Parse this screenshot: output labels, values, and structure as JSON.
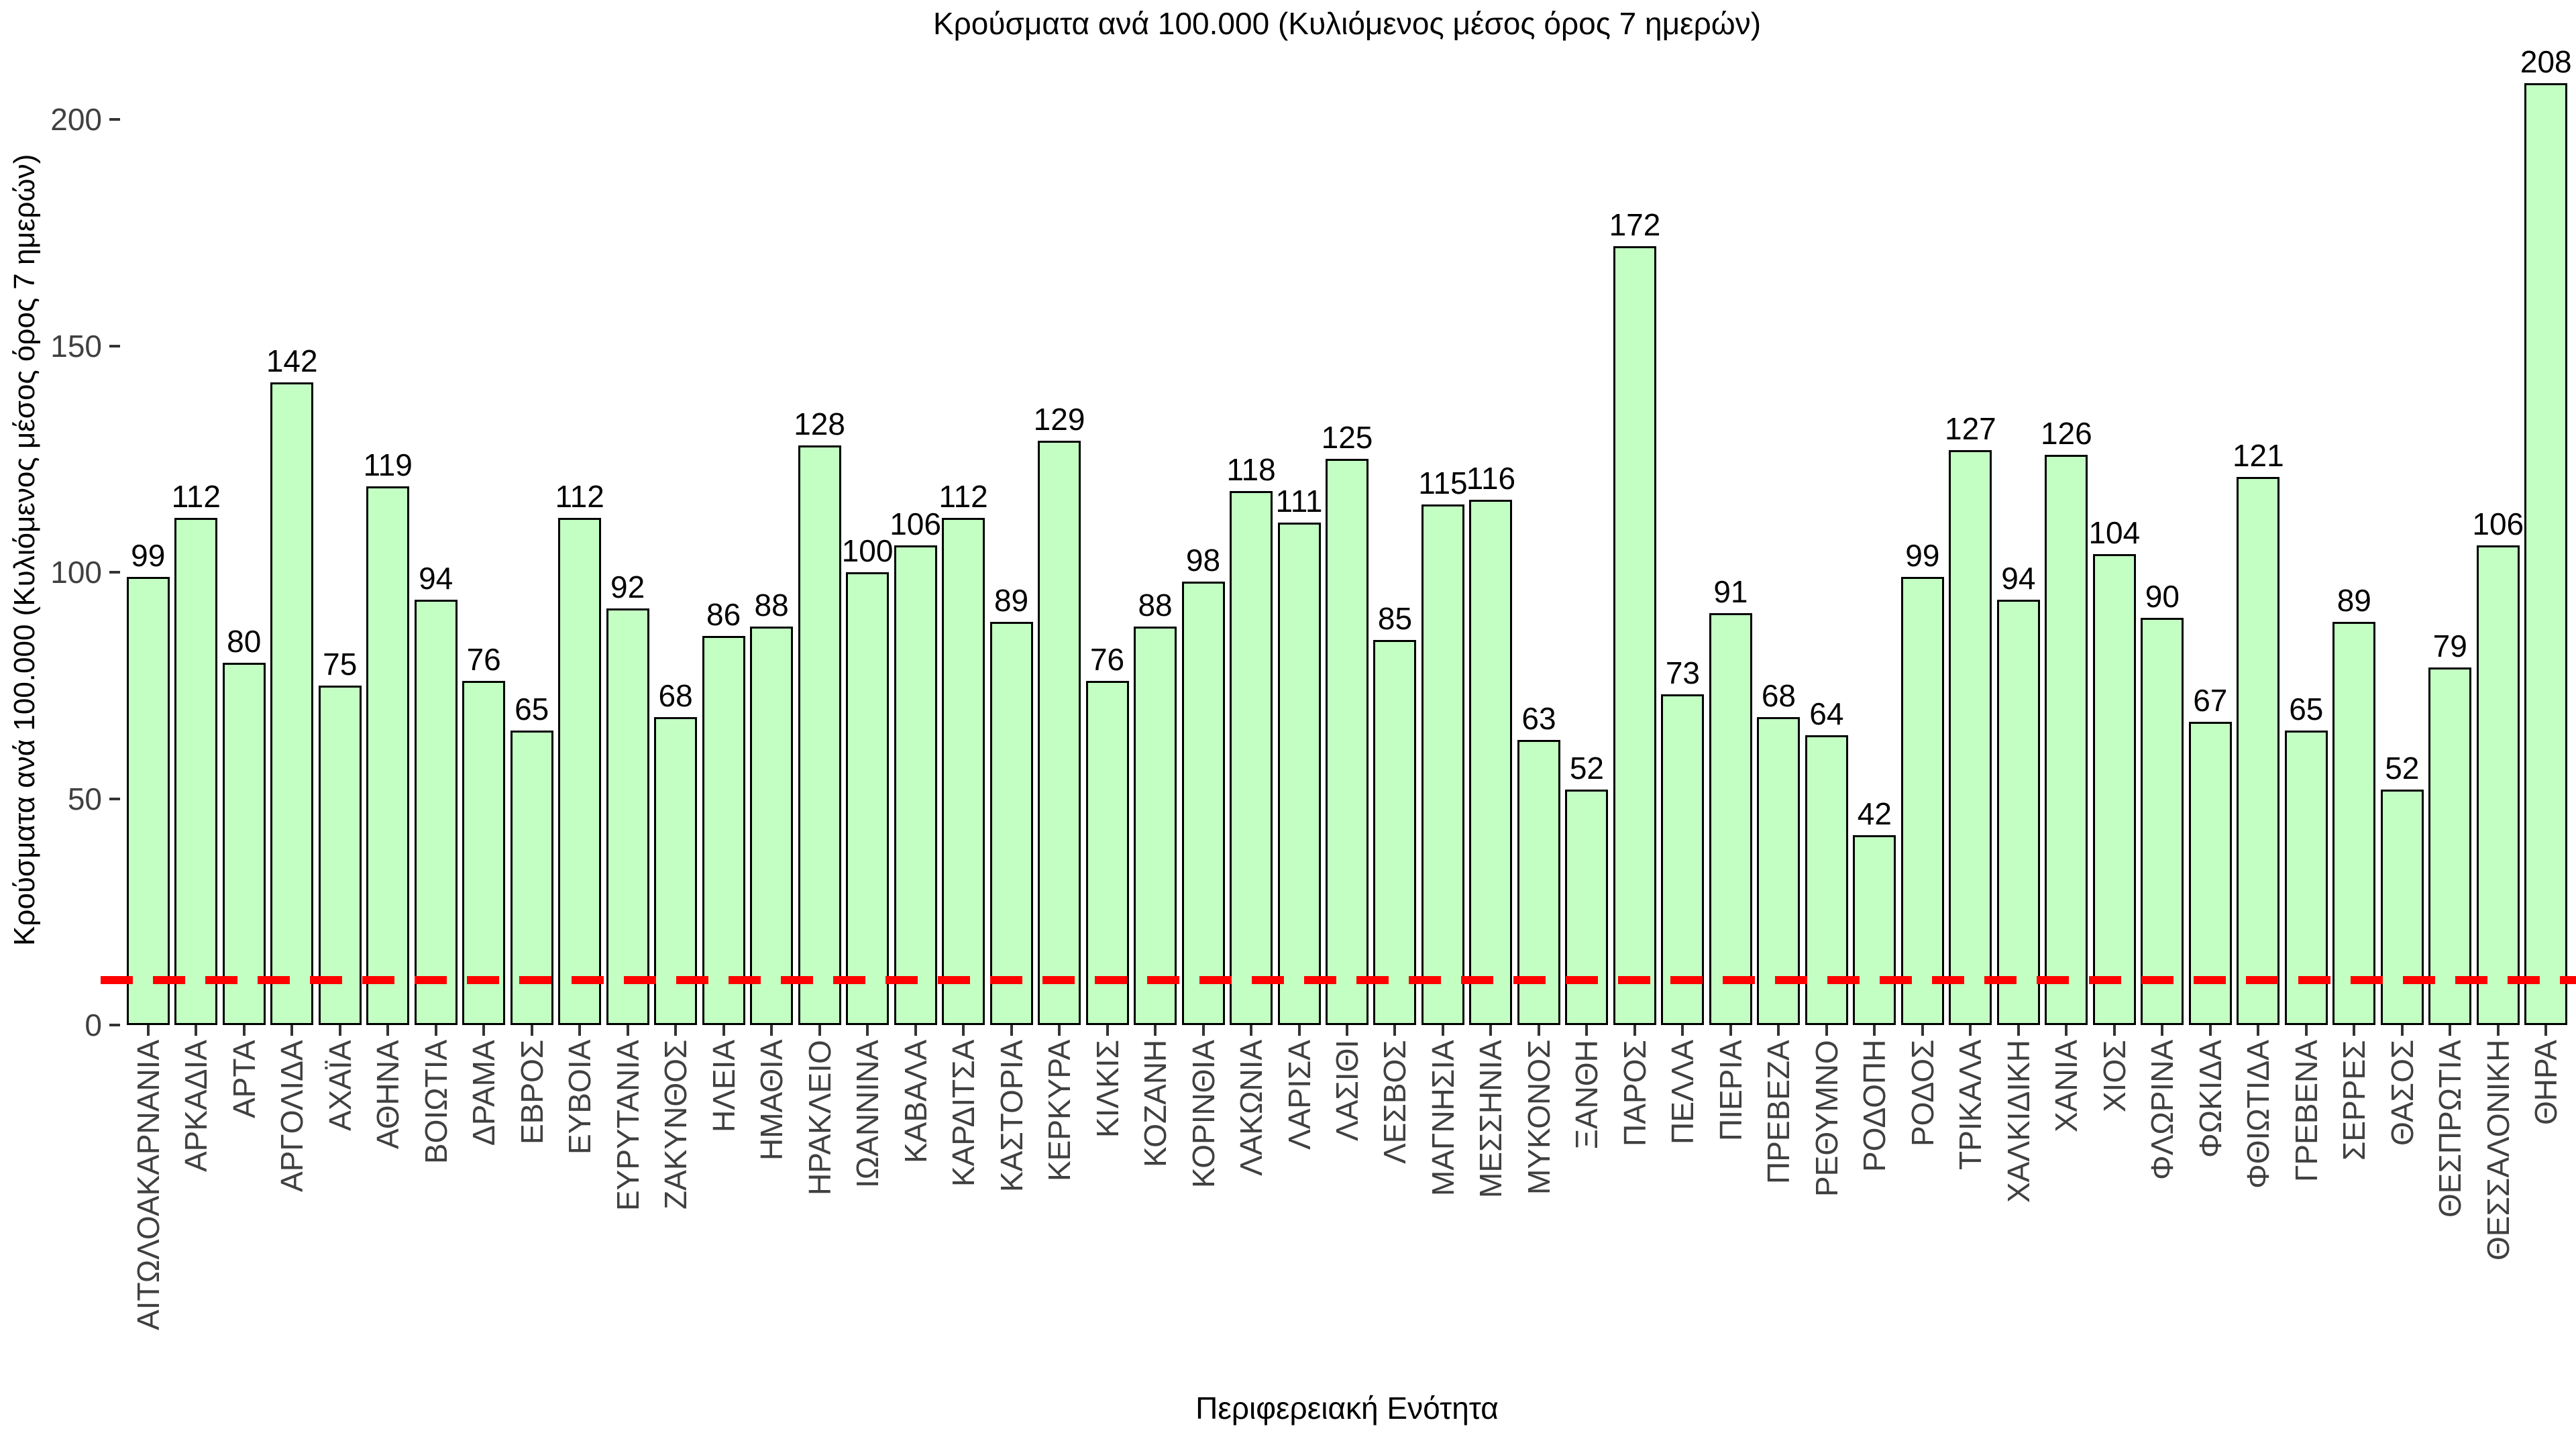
{
  "title": "Κρούσματα ανά 100.000 (Κυλιόμενος μέσος όρος 7 ημερών)",
  "chart_data": {
    "type": "bar",
    "title": "Κρούσματα ανά 100.000 (Κυλιόμενος μέσος όρος 7 ημερών)",
    "xlabel": "Περιφερειακή Ενότητα",
    "ylabel": "Κρούσματα ανά 100.000 (Κυλιόμενος μέσος όρος 7 ημερών)",
    "categories": [
      "ΑΙΤΩΛΟΑΚΑΡΝΑΝΙΑ",
      "ΑΡΚΑΔΙΑ",
      "ΑΡΤΑ",
      "ΑΡΓΟΛΙΔΑ",
      "ΑΧΑΪΑ",
      "ΑΘΗΝΑ",
      "ΒΟΙΩΤΙΑ",
      "ΔΡΑΜΑ",
      "ΕΒΡΟΣ",
      "ΕΥΒΟΙΑ",
      "ΕΥΡΥΤΑΝΙΑ",
      "ΖΑΚΥΝΘΟΣ",
      "ΗΛΕΙΑ",
      "ΗΜΑΘΙΑ",
      "ΗΡΑΚΛΕΙΟ",
      "ΙΩΑΝΝΙΝΑ",
      "ΚΑΒΑΛΑ",
      "ΚΑΡΔΙΤΣΑ",
      "ΚΑΣΤΟΡΙΑ",
      "ΚΕΡΚΥΡΑ",
      "ΚΙΛΚΙΣ",
      "ΚΟΖΑΝΗ",
      "ΚΟΡΙΝΘΙΑ",
      "ΛΑΚΩΝΙΑ",
      "ΛΑΡΙΣΑ",
      "ΛΑΣΙΘΙ",
      "ΛΕΣΒΟΣ",
      "ΜΑΓΝΗΣΙΑ",
      "ΜΕΣΣΗΝΙΑ",
      "ΜΥΚΟΝΟΣ",
      "ΞΑΝΘΗ",
      "ΠΑΡΟΣ",
      "ΠΕΛΛΑ",
      "ΠΙΕΡΙΑ",
      "ΠΡΕΒΕΖΑ",
      "ΡΕΘΥΜΝΟ",
      "ΡΟΔΟΠΗ",
      "ΡΟΔΟΣ",
      "ΤΡΙΚΑΛΑ",
      "ΧΑΛΚΙΔΙΚΗ",
      "ΧΑΝΙΑ",
      "ΧΙΟΣ",
      "ΦΛΩΡΙΝΑ",
      "ΦΩΚΙΔΑ",
      "ΦΘΙΩΤΙΔΑ",
      "ΓΡΕΒΕΝΑ",
      "ΣΕΡΡΕΣ",
      "ΘΑΣΟΣ",
      "ΘΕΣΠΡΩΤΙΑ",
      "ΘΕΣΣΑΛΟΝΙΚΗ",
      "ΘΗΡΑ"
    ],
    "values": [
      99,
      112,
      80,
      142,
      75,
      119,
      94,
      76,
      65,
      112,
      92,
      68,
      86,
      88,
      128,
      100,
      106,
      112,
      89,
      129,
      76,
      88,
      98,
      118,
      111,
      125,
      85,
      115,
      116,
      63,
      52,
      172,
      73,
      91,
      68,
      64,
      42,
      99,
      127,
      94,
      126,
      104,
      90,
      67,
      121,
      65,
      89,
      52,
      79,
      106,
      208
    ],
    "yticks": [
      0,
      50,
      100,
      150,
      200
    ],
    "ylim": [
      0,
      215
    ],
    "grid": false,
    "legend": false,
    "bar_color": "#c3ffc3",
    "bar_border_color": "#000000",
    "value_label_color": "#000000",
    "tick_label_color": "#404040",
    "background": "#ffffff",
    "reference_line": {
      "value": 10,
      "color": "#ff0000",
      "style": "dashed"
    }
  }
}
